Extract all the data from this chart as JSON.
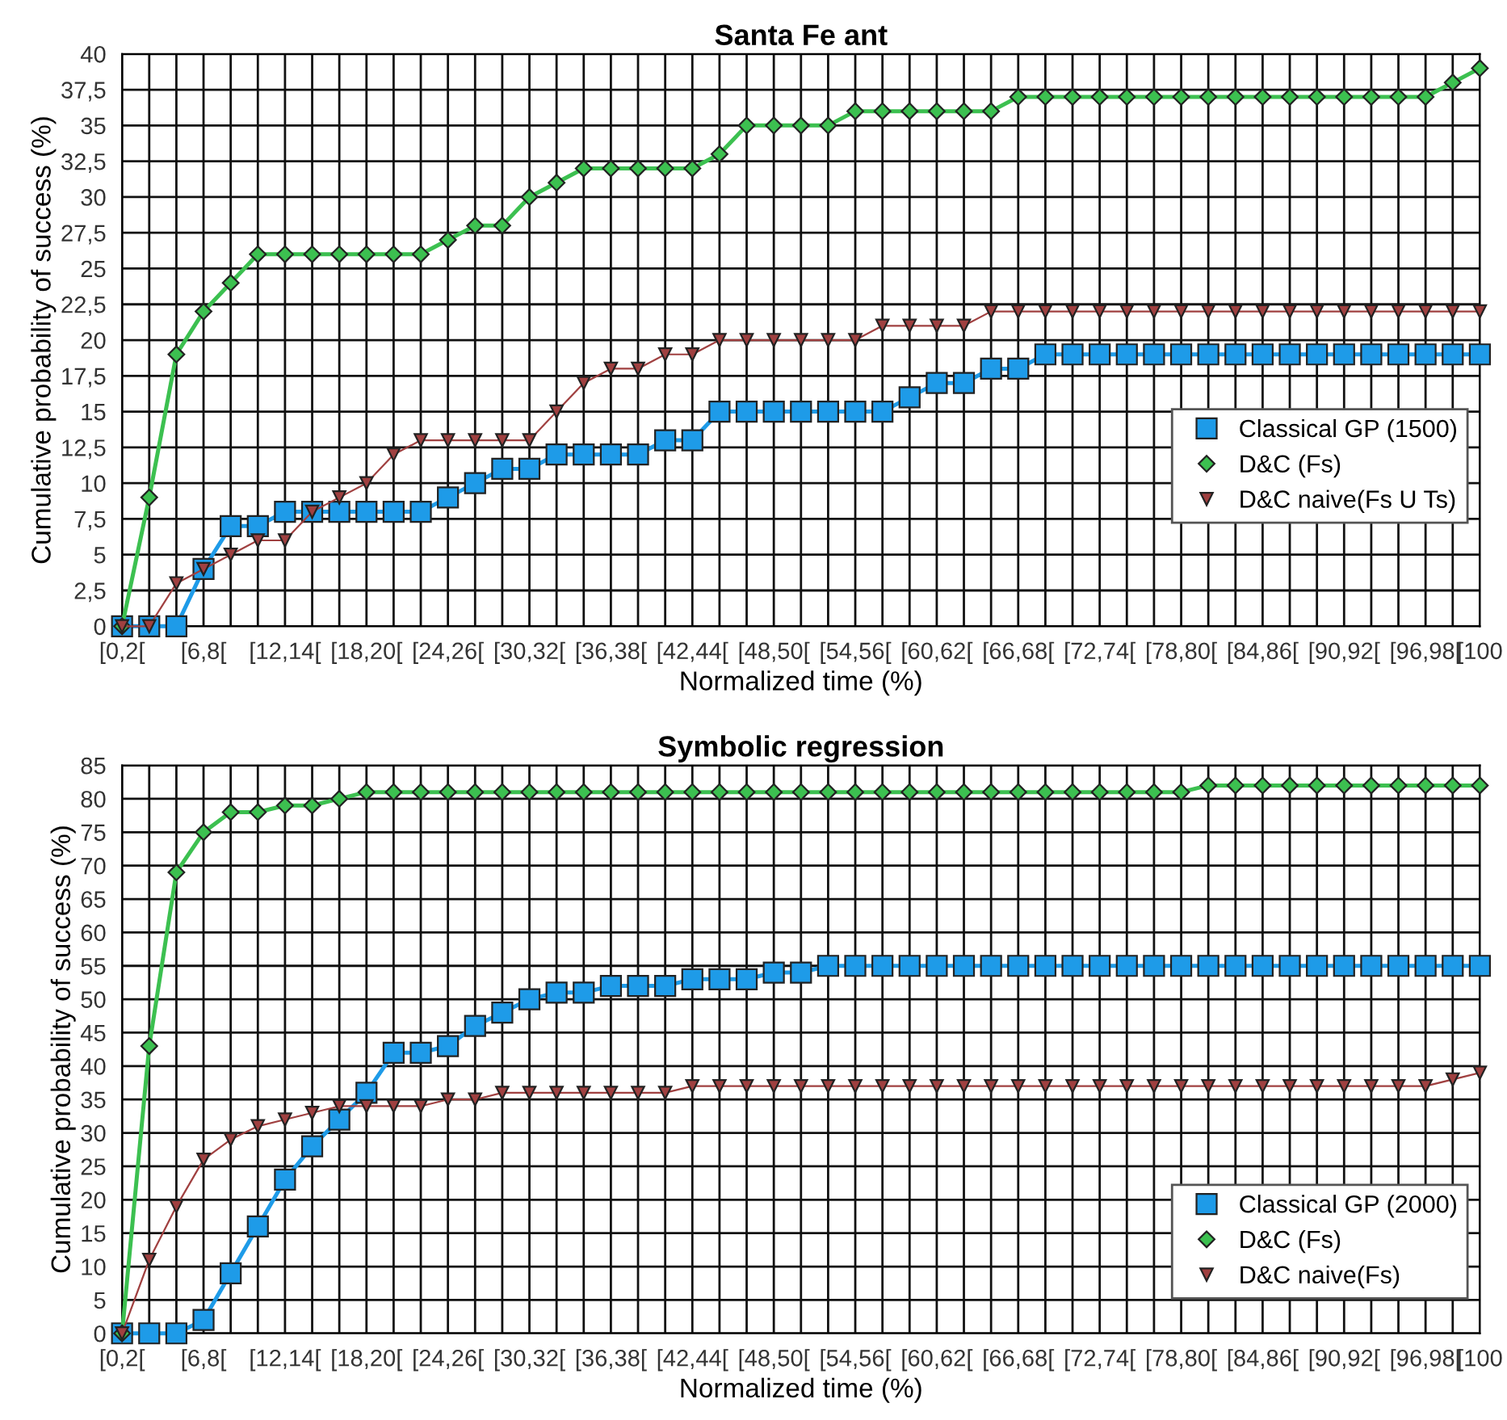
{
  "chart_data": [
    {
      "type": "line",
      "title": "Santa Fe ant",
      "xlabel": "Normalized time (%)",
      "ylabel": "Cumulative probability of success (%)",
      "categories": [
        "[0,2[",
        null,
        null,
        "[6,8[",
        null,
        null,
        "[12,14[",
        null,
        null,
        "[18,20[",
        null,
        null,
        "[24,26[",
        null,
        null,
        "[30,32[",
        null,
        null,
        "[36,38[",
        null,
        null,
        "[42,44[",
        null,
        null,
        "[48,50[",
        null,
        null,
        "[54,56[",
        null,
        null,
        "[60,62[",
        null,
        null,
        "[66,68[",
        null,
        null,
        "[72,74[",
        null,
        null,
        "[78,80[",
        null,
        null,
        "[84,86[",
        null,
        null,
        "[90,92[",
        null,
        null,
        "[96,98[",
        null,
        "[100"
      ],
      "ylim": [
        0,
        40
      ],
      "yticks": [
        0,
        {
          "value": 2.5,
          "label": "2,5"
        },
        5,
        {
          "value": 7.5,
          "label": "7,5"
        },
        10,
        {
          "value": 12.5,
          "label": "12,5"
        },
        15,
        {
          "value": 17.5,
          "label": "17,5"
        },
        20,
        {
          "value": 22.5,
          "label": "22,5"
        },
        25,
        {
          "value": 27.5,
          "label": "27,5"
        },
        30,
        {
          "value": 32.5,
          "label": "32,5"
        },
        35,
        {
          "value": 37.5,
          "label": "37,5"
        },
        40
      ],
      "grid": true,
      "legend": "right",
      "series": [
        {
          "name": "Classical GP (1500)",
          "color": "#1e9be8",
          "marker": "square",
          "values": [
            0,
            0,
            0,
            4,
            7,
            7,
            8,
            8,
            8,
            8,
            8,
            8,
            9,
            10,
            11,
            11,
            12,
            12,
            12,
            12,
            13,
            13,
            15,
            15,
            15,
            15,
            15,
            15,
            15,
            16,
            17,
            17,
            18,
            18,
            19,
            19,
            19,
            19,
            19,
            19,
            19,
            19,
            19,
            19,
            19,
            19,
            19,
            19,
            19,
            19,
            19
          ]
        },
        {
          "name": "D&C (Fs)",
          "color": "#3cc050",
          "marker": "diamond",
          "values": [
            0,
            9,
            19,
            22,
            24,
            26,
            26,
            26,
            26,
            26,
            26,
            26,
            27,
            28,
            28,
            30,
            31,
            32,
            32,
            32,
            32,
            32,
            33,
            35,
            35,
            35,
            35,
            36,
            36,
            36,
            36,
            36,
            36,
            37,
            37,
            37,
            37,
            37,
            37,
            37,
            37,
            37,
            37,
            37,
            37,
            37,
            37,
            37,
            37,
            38,
            39
          ]
        },
        {
          "name": "D&C naive(Fs U Ts)",
          "color": "#a04040",
          "marker": "triangle",
          "values": [
            0,
            0,
            3,
            4,
            5,
            6,
            6,
            8,
            9,
            10,
            12,
            13,
            13,
            13,
            13,
            13,
            15,
            17,
            18,
            18,
            19,
            19,
            20,
            20,
            20,
            20,
            20,
            20,
            21,
            21,
            21,
            21,
            22,
            22,
            22,
            22,
            22,
            22,
            22,
            22,
            22,
            22,
            22,
            22,
            22,
            22,
            22,
            22,
            22,
            22,
            22
          ]
        }
      ]
    },
    {
      "type": "line",
      "title": "Symbolic regression",
      "xlabel": "Normalized time (%)",
      "ylabel": "Cumulative probability of success (%)",
      "categories": [
        "[0,2[",
        null,
        null,
        "[6,8[",
        null,
        null,
        "[12,14[",
        null,
        null,
        "[18,20[",
        null,
        null,
        "[24,26[",
        null,
        null,
        "[30,32[",
        null,
        null,
        "[36,38[",
        null,
        null,
        "[42,44[",
        null,
        null,
        "[48,50[",
        null,
        null,
        "[54,56[",
        null,
        null,
        "[60,62[",
        null,
        null,
        "[66,68[",
        null,
        null,
        "[72,74[",
        null,
        null,
        "[78,80[",
        null,
        null,
        "[84,86[",
        null,
        null,
        "[90,92[",
        null,
        null,
        "[96,98[",
        null,
        "[100"
      ],
      "ylim": [
        0,
        85
      ],
      "yticks": [
        0,
        5,
        10,
        15,
        20,
        25,
        30,
        35,
        40,
        45,
        50,
        55,
        60,
        65,
        70,
        75,
        80,
        85
      ],
      "grid": true,
      "legend": "lower right",
      "series": [
        {
          "name": "Classical GP (2000)",
          "color": "#1e9be8",
          "marker": "square",
          "values": [
            0,
            0,
            0,
            2,
            9,
            16,
            23,
            28,
            32,
            36,
            42,
            42,
            43,
            46,
            48,
            50,
            51,
            51,
            52,
            52,
            52,
            53,
            53,
            53,
            54,
            54,
            55,
            55,
            55,
            55,
            55,
            55,
            55,
            55,
            55,
            55,
            55,
            55,
            55,
            55,
            55,
            55,
            55,
            55,
            55,
            55,
            55,
            55,
            55,
            55,
            55
          ]
        },
        {
          "name": "D&C (Fs)",
          "color": "#3cc050",
          "marker": "diamond",
          "values": [
            0,
            43,
            69,
            75,
            78,
            78,
            79,
            79,
            80,
            81,
            81,
            81,
            81,
            81,
            81,
            81,
            81,
            81,
            81,
            81,
            81,
            81,
            81,
            81,
            81,
            81,
            81,
            81,
            81,
            81,
            81,
            81,
            81,
            81,
            81,
            81,
            81,
            81,
            81,
            81,
            82,
            82,
            82,
            82,
            82,
            82,
            82,
            82,
            82,
            82,
            82
          ]
        },
        {
          "name": "D&C naive(Fs)",
          "color": "#a04040",
          "marker": "triangle",
          "values": [
            0,
            11,
            19,
            26,
            29,
            31,
            32,
            33,
            34,
            34,
            34,
            34,
            35,
            35,
            36,
            36,
            36,
            36,
            36,
            36,
            36,
            37,
            37,
            37,
            37,
            37,
            37,
            37,
            37,
            37,
            37,
            37,
            37,
            37,
            37,
            37,
            37,
            37,
            37,
            37,
            37,
            37,
            37,
            37,
            37,
            37,
            37,
            37,
            37,
            38,
            39
          ]
        }
      ]
    }
  ]
}
